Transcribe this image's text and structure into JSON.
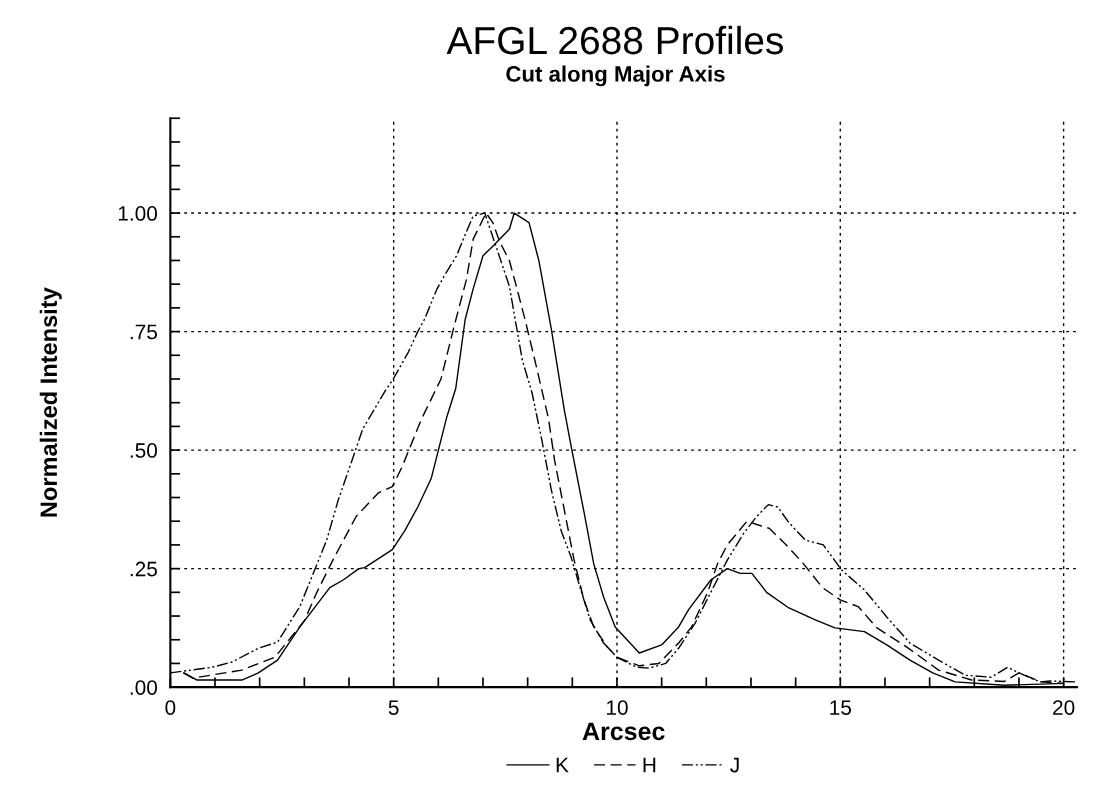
{
  "chart_data": {
    "type": "line",
    "title": "AFGL 2688 Profiles",
    "subtitle": "Cut along Major Axis",
    "xlabel": "Arcsec",
    "ylabel": "Normalized Intensity",
    "xlim": [
      0,
      20.3
    ],
    "ylim": [
      0,
      1.2
    ],
    "xticks": [
      0,
      {
        "value": 1,
        "label": null
      },
      {
        "value": 2,
        "label": null
      },
      {
        "value": 3,
        "label": null
      },
      {
        "value": 4,
        "label": null
      },
      5,
      {
        "value": 6,
        "label": null
      },
      {
        "value": 7,
        "label": null
      },
      {
        "value": 8,
        "label": null
      },
      {
        "value": 9,
        "label": null
      },
      10,
      {
        "value": 11,
        "label": null
      },
      {
        "value": 12,
        "label": null
      },
      {
        "value": 13,
        "label": null
      },
      {
        "value": 14,
        "label": null
      },
      15,
      {
        "value": 16,
        "label": null
      },
      {
        "value": 17,
        "label": null
      },
      {
        "value": 18,
        "label": null
      },
      {
        "value": 19,
        "label": null
      },
      20
    ],
    "yticks": [
      {
        "value": 0,
        "label": ".00"
      },
      {
        "value": 0.05,
        "label": null
      },
      {
        "value": 0.1,
        "label": null
      },
      {
        "value": 0.15,
        "label": null
      },
      {
        "value": 0.2,
        "label": null
      },
      {
        "value": 0.25,
        "label": ".25"
      },
      {
        "value": 0.3,
        "label": null
      },
      {
        "value": 0.35,
        "label": null
      },
      {
        "value": 0.4,
        "label": null
      },
      {
        "value": 0.45,
        "label": null
      },
      {
        "value": 0.5,
        "label": ".50"
      },
      {
        "value": 0.55,
        "label": null
      },
      {
        "value": 0.6,
        "label": null
      },
      {
        "value": 0.65,
        "label": null
      },
      {
        "value": 0.7,
        "label": null
      },
      {
        "value": 0.75,
        "label": ".75"
      },
      {
        "value": 0.8,
        "label": null
      },
      {
        "value": 0.85,
        "label": null
      },
      {
        "value": 0.9,
        "label": null
      },
      {
        "value": 0.95,
        "label": null
      },
      {
        "value": 1.0,
        "label": "1.00"
      },
      {
        "value": 1.05,
        "label": null
      },
      {
        "value": 1.1,
        "label": null
      },
      {
        "value": 1.15,
        "label": null
      },
      {
        "value": 1.2,
        "label": null
      }
    ],
    "grid": true,
    "legend": "bottom",
    "marker": "none",
    "series": [
      {
        "name": "K",
        "color": "#000000",
        "line_style": "solid",
        "x": [
          0.3,
          0.6,
          1.6,
          1.97,
          2.4,
          2.9,
          3.57,
          3.87,
          4.22,
          4.35,
          4.97,
          5.25,
          5.54,
          5.84,
          6.19,
          6.39,
          6.6,
          6.78,
          7.0,
          7.22,
          7.59,
          7.7,
          8.03,
          8.25,
          8.53,
          8.82,
          8.97,
          9.26,
          9.48,
          9.7,
          9.96,
          10.5,
          11.0,
          11.38,
          11.6,
          12.1,
          12.47,
          12.76,
          13.02,
          13.35,
          13.85,
          14.44,
          14.88,
          15.54,
          16.04,
          16.56,
          17.07,
          17.57,
          18.67,
          20.0
        ],
        "values": [
          0.03,
          0.015,
          0.015,
          0.03,
          0.057,
          0.127,
          0.21,
          0.226,
          0.25,
          0.252,
          0.29,
          0.33,
          0.38,
          0.44,
          0.57,
          0.63,
          0.775,
          0.84,
          0.91,
          0.93,
          0.966,
          1.0,
          0.98,
          0.9,
          0.755,
          0.585,
          0.51,
          0.37,
          0.26,
          0.19,
          0.127,
          0.072,
          0.089,
          0.127,
          0.163,
          0.226,
          0.25,
          0.24,
          0.24,
          0.2,
          0.167,
          0.142,
          0.125,
          0.117,
          0.089,
          0.057,
          0.03,
          0.011,
          0.004,
          0.008
        ]
      },
      {
        "name": "H",
        "color": "#000000",
        "line_style": "dashed",
        "x": [
          0.3,
          0.5,
          1.6,
          2.34,
          3.0,
          3.28,
          3.65,
          4.16,
          4.66,
          4.97,
          5.19,
          5.62,
          6.06,
          6.35,
          6.63,
          6.78,
          7.0,
          7.07,
          7.22,
          7.37,
          7.59,
          7.72,
          7.94,
          8.16,
          8.47,
          8.6,
          8.82,
          9.04,
          9.26,
          9.48,
          9.78,
          10.0,
          10.5,
          10.94,
          11.38,
          11.67,
          12.03,
          12.25,
          12.47,
          12.91,
          13.13,
          13.41,
          13.79,
          14.16,
          14.6,
          15.0,
          15.4,
          15.82,
          16.48,
          17.2,
          17.94,
          18.67,
          19.0,
          19.5,
          20.0
        ],
        "values": [
          0.03,
          0.019,
          0.036,
          0.063,
          0.14,
          0.2,
          0.27,
          0.36,
          0.41,
          0.423,
          0.465,
          0.565,
          0.65,
          0.76,
          0.86,
          0.945,
          0.987,
          1.0,
          0.98,
          0.94,
          0.9,
          0.855,
          0.776,
          0.69,
          0.565,
          0.48,
          0.374,
          0.268,
          0.184,
          0.127,
          0.085,
          0.063,
          0.045,
          0.05,
          0.093,
          0.127,
          0.2,
          0.26,
          0.3,
          0.35,
          0.343,
          0.335,
          0.3,
          0.262,
          0.21,
          0.184,
          0.17,
          0.125,
          0.085,
          0.036,
          0.015,
          0.012,
          0.03,
          0.011,
          0.008
        ]
      },
      {
        "name": "J",
        "color": "#000000",
        "line_style": "dashdot",
        "x": [
          0.0,
          0.94,
          1.38,
          1.97,
          2.4,
          2.9,
          3.2,
          3.5,
          3.76,
          4.0,
          4.31,
          4.53,
          4.81,
          4.99,
          5.32,
          5.54,
          5.69,
          5.97,
          6.13,
          6.41,
          6.56,
          6.78,
          7.04,
          7.29,
          7.59,
          7.88,
          8.1,
          8.32,
          8.53,
          8.75,
          8.97,
          9.19,
          9.4,
          9.7,
          10.0,
          10.44,
          10.72,
          11.09,
          11.38,
          11.75,
          12.1,
          12.47,
          12.84,
          13.13,
          13.39,
          13.6,
          13.85,
          14.22,
          14.62,
          15.03,
          15.54,
          16.04,
          16.56,
          17.2,
          17.8,
          18.38,
          18.75,
          19.0,
          19.47,
          19.7,
          20.3
        ],
        "values": [
          0.03,
          0.042,
          0.053,
          0.082,
          0.095,
          0.17,
          0.24,
          0.31,
          0.395,
          0.46,
          0.545,
          0.58,
          0.625,
          0.65,
          0.705,
          0.75,
          0.776,
          0.84,
          0.867,
          0.91,
          0.945,
          0.994,
          1.0,
          0.93,
          0.846,
          0.69,
          0.62,
          0.52,
          0.416,
          0.33,
          0.275,
          0.205,
          0.142,
          0.093,
          0.063,
          0.042,
          0.04,
          0.05,
          0.082,
          0.135,
          0.2,
          0.268,
          0.325,
          0.36,
          0.385,
          0.38,
          0.347,
          0.31,
          0.3,
          0.247,
          0.205,
          0.148,
          0.093,
          0.057,
          0.025,
          0.021,
          0.042,
          0.03,
          0.011,
          0.013,
          0.011
        ]
      }
    ]
  }
}
